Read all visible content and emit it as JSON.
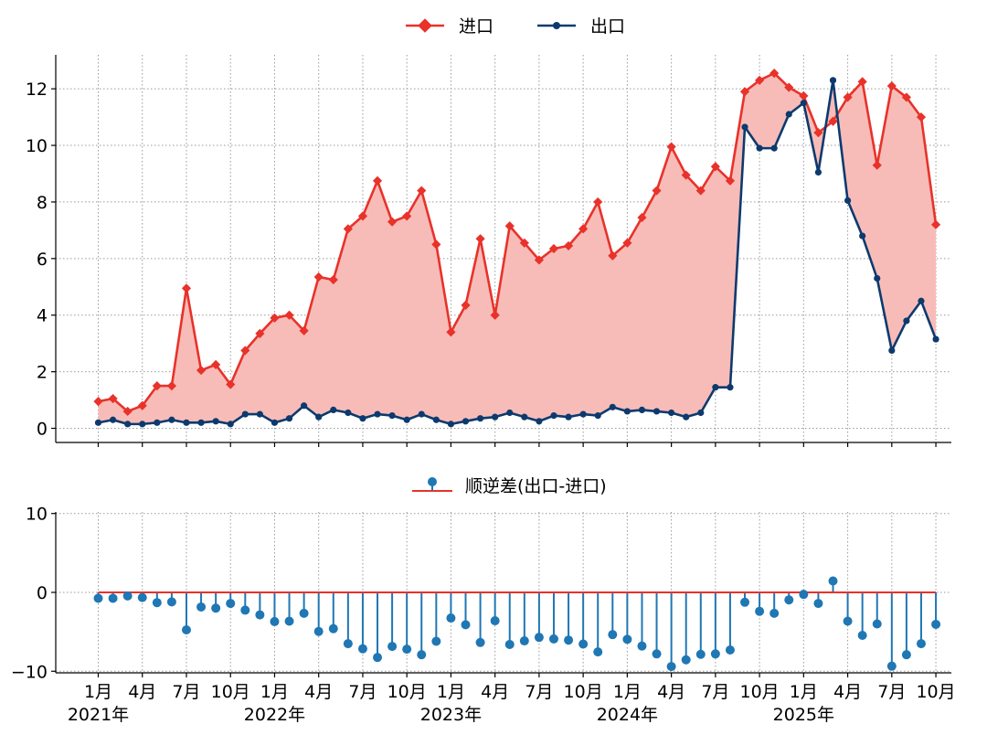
{
  "chart_data": [
    {
      "type": "line",
      "x": [
        "2021-01",
        "2021-02",
        "2021-03",
        "2021-04",
        "2021-05",
        "2021-06",
        "2021-07",
        "2021-08",
        "2021-09",
        "2021-10",
        "2021-11",
        "2021-12",
        "2022-01",
        "2022-02",
        "2022-03",
        "2022-04",
        "2022-05",
        "2022-06",
        "2022-07",
        "2022-08",
        "2022-09",
        "2022-10",
        "2022-11",
        "2022-12",
        "2023-01",
        "2023-02",
        "2023-03",
        "2023-04",
        "2023-05",
        "2023-06",
        "2023-07",
        "2023-08",
        "2023-09",
        "2023-10",
        "2023-11",
        "2023-12",
        "2024-01",
        "2024-02",
        "2024-03",
        "2024-04",
        "2024-05",
        "2024-06",
        "2024-07",
        "2024-08",
        "2024-09",
        "2024-10",
        "2024-11",
        "2024-12",
        "2025-01",
        "2025-02",
        "2025-03",
        "2025-04",
        "2025-05",
        "2025-06",
        "2025-07",
        "2025-08",
        "2025-09",
        "2025-10"
      ],
      "series": [
        {
          "name": "进口",
          "color": "#e8322a",
          "marker": "diamond",
          "values": [
            0.95,
            1.05,
            0.6,
            0.8,
            1.5,
            1.5,
            4.95,
            2.05,
            2.25,
            1.55,
            2.75,
            3.35,
            3.9,
            4.0,
            3.45,
            5.35,
            5.25,
            7.05,
            7.5,
            8.75,
            7.3,
            7.5,
            8.4,
            6.5,
            3.4,
            4.35,
            6.7,
            4.0,
            7.15,
            6.55,
            5.95,
            6.35,
            6.45,
            7.05,
            8.0,
            6.1,
            6.55,
            7.45,
            8.4,
            9.95,
            8.95,
            8.4,
            9.25,
            8.75,
            11.9,
            12.3,
            12.55,
            12.05,
            11.75,
            10.45,
            10.85,
            11.7,
            12.25,
            9.3,
            12.1,
            11.7,
            11.0,
            7.2
          ]
        },
        {
          "name": "出口",
          "color": "#0d3a6e",
          "marker": "circle",
          "values": [
            0.2,
            0.3,
            0.15,
            0.15,
            0.2,
            0.3,
            0.2,
            0.2,
            0.25,
            0.15,
            0.5,
            0.5,
            0.2,
            0.35,
            0.8,
            0.4,
            0.65,
            0.55,
            0.35,
            0.5,
            0.45,
            0.3,
            0.5,
            0.3,
            0.15,
            0.25,
            0.35,
            0.4,
            0.55,
            0.4,
            0.25,
            0.45,
            0.4,
            0.5,
            0.45,
            0.75,
            0.6,
            0.65,
            0.6,
            0.55,
            0.4,
            0.55,
            1.45,
            1.45,
            10.65,
            9.9,
            9.9,
            11.1,
            11.5,
            9.05,
            12.3,
            8.05,
            6.8,
            5.3,
            2.75,
            3.8,
            4.5,
            3.15
          ]
        }
      ],
      "fill_between": {
        "color": "#f8bcb8"
      },
      "ylim": [
        -0.5,
        13.2
      ],
      "yticks": [
        0,
        2,
        4,
        6,
        8,
        10,
        12
      ],
      "grid": true,
      "legend_position": "top-center"
    },
    {
      "type": "stem",
      "series": [
        {
          "name": "顺逆差(出口-进口)",
          "color": "#1f77b4",
          "baseline_color": "#e8322a",
          "values": [
            -0.75,
            -0.75,
            -0.45,
            -0.65,
            -1.3,
            -1.2,
            -4.75,
            -1.85,
            -2.0,
            -1.4,
            -2.25,
            -2.85,
            -3.7,
            -3.65,
            -2.65,
            -4.95,
            -4.6,
            -6.5,
            -7.15,
            -8.25,
            -6.85,
            -7.2,
            -7.9,
            -6.2,
            -3.25,
            -4.1,
            -6.35,
            -3.6,
            -6.6,
            -6.15,
            -5.7,
            -5.9,
            -6.05,
            -6.55,
            -7.55,
            -5.35,
            -5.95,
            -6.8,
            -7.8,
            -9.4,
            -8.55,
            -7.85,
            -7.8,
            -7.3,
            -1.25,
            -2.4,
            -2.65,
            -0.95,
            -0.25,
            -1.4,
            1.45,
            -3.65,
            -5.45,
            -4.0,
            -9.35,
            -7.9,
            -6.5,
            -4.05
          ]
        }
      ],
      "ylim": [
        -10.2,
        10.2
      ],
      "yticks": [
        10,
        0,
        -10
      ],
      "grid": true,
      "legend_position": "top-center"
    }
  ],
  "xaxis": {
    "month_labels": [
      "1月",
      "4月",
      "7月",
      "10月",
      "1月",
      "4月",
      "7月",
      "10月",
      "1月",
      "4月",
      "7月",
      "10月",
      "1月",
      "4月",
      "7月",
      "10月",
      "1月",
      "4月",
      "7月",
      "10月"
    ],
    "year_labels": [
      "2021年",
      "2022年",
      "2023年",
      "2024年",
      "2025年"
    ]
  },
  "yticklabels_top": [
    "0",
    "2",
    "4",
    "6",
    "8",
    "10",
    "12"
  ],
  "yticklabels_bottom": [
    "10",
    "0",
    "−10"
  ],
  "legend_top": {
    "import_label": "进口",
    "export_label": "出口"
  },
  "legend_bottom": {
    "balance_label": "顺逆差(出口-进口)"
  }
}
